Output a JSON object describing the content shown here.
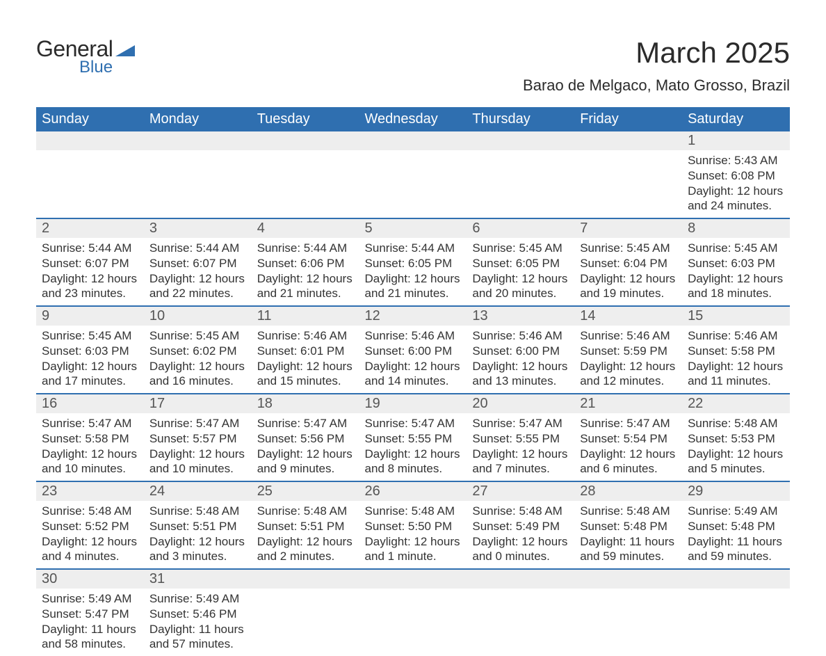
{
  "brand": {
    "word1": "General",
    "word2": "Blue",
    "color_blue": "#2f6fb0"
  },
  "title": "March 2025",
  "subtitle": "Barao de Melgaco, Mato Grosso, Brazil",
  "colors": {
    "header_bg": "#2f6fb0",
    "header_text": "#ffffff",
    "daynum_bg": "#eeeeee",
    "divider": "#2f6fb0",
    "text": "#333333",
    "page_bg": "#ffffff"
  },
  "day_headers": [
    "Sunday",
    "Monday",
    "Tuesday",
    "Wednesday",
    "Thursday",
    "Friday",
    "Saturday"
  ],
  "weeks": [
    [
      null,
      null,
      null,
      null,
      null,
      null,
      {
        "n": "1",
        "sunrise": "Sunrise: 5:43 AM",
        "sunset": "Sunset: 6:08 PM",
        "day1": "Daylight: 12 hours",
        "day2": "and 24 minutes."
      }
    ],
    [
      {
        "n": "2",
        "sunrise": "Sunrise: 5:44 AM",
        "sunset": "Sunset: 6:07 PM",
        "day1": "Daylight: 12 hours",
        "day2": "and 23 minutes."
      },
      {
        "n": "3",
        "sunrise": "Sunrise: 5:44 AM",
        "sunset": "Sunset: 6:07 PM",
        "day1": "Daylight: 12 hours",
        "day2": "and 22 minutes."
      },
      {
        "n": "4",
        "sunrise": "Sunrise: 5:44 AM",
        "sunset": "Sunset: 6:06 PM",
        "day1": "Daylight: 12 hours",
        "day2": "and 21 minutes."
      },
      {
        "n": "5",
        "sunrise": "Sunrise: 5:44 AM",
        "sunset": "Sunset: 6:05 PM",
        "day1": "Daylight: 12 hours",
        "day2": "and 21 minutes."
      },
      {
        "n": "6",
        "sunrise": "Sunrise: 5:45 AM",
        "sunset": "Sunset: 6:05 PM",
        "day1": "Daylight: 12 hours",
        "day2": "and 20 minutes."
      },
      {
        "n": "7",
        "sunrise": "Sunrise: 5:45 AM",
        "sunset": "Sunset: 6:04 PM",
        "day1": "Daylight: 12 hours",
        "day2": "and 19 minutes."
      },
      {
        "n": "8",
        "sunrise": "Sunrise: 5:45 AM",
        "sunset": "Sunset: 6:03 PM",
        "day1": "Daylight: 12 hours",
        "day2": "and 18 minutes."
      }
    ],
    [
      {
        "n": "9",
        "sunrise": "Sunrise: 5:45 AM",
        "sunset": "Sunset: 6:03 PM",
        "day1": "Daylight: 12 hours",
        "day2": "and 17 minutes."
      },
      {
        "n": "10",
        "sunrise": "Sunrise: 5:45 AM",
        "sunset": "Sunset: 6:02 PM",
        "day1": "Daylight: 12 hours",
        "day2": "and 16 minutes."
      },
      {
        "n": "11",
        "sunrise": "Sunrise: 5:46 AM",
        "sunset": "Sunset: 6:01 PM",
        "day1": "Daylight: 12 hours",
        "day2": "and 15 minutes."
      },
      {
        "n": "12",
        "sunrise": "Sunrise: 5:46 AM",
        "sunset": "Sunset: 6:00 PM",
        "day1": "Daylight: 12 hours",
        "day2": "and 14 minutes."
      },
      {
        "n": "13",
        "sunrise": "Sunrise: 5:46 AM",
        "sunset": "Sunset: 6:00 PM",
        "day1": "Daylight: 12 hours",
        "day2": "and 13 minutes."
      },
      {
        "n": "14",
        "sunrise": "Sunrise: 5:46 AM",
        "sunset": "Sunset: 5:59 PM",
        "day1": "Daylight: 12 hours",
        "day2": "and 12 minutes."
      },
      {
        "n": "15",
        "sunrise": "Sunrise: 5:46 AM",
        "sunset": "Sunset: 5:58 PM",
        "day1": "Daylight: 12 hours",
        "day2": "and 11 minutes."
      }
    ],
    [
      {
        "n": "16",
        "sunrise": "Sunrise: 5:47 AM",
        "sunset": "Sunset: 5:58 PM",
        "day1": "Daylight: 12 hours",
        "day2": "and 10 minutes."
      },
      {
        "n": "17",
        "sunrise": "Sunrise: 5:47 AM",
        "sunset": "Sunset: 5:57 PM",
        "day1": "Daylight: 12 hours",
        "day2": "and 10 minutes."
      },
      {
        "n": "18",
        "sunrise": "Sunrise: 5:47 AM",
        "sunset": "Sunset: 5:56 PM",
        "day1": "Daylight: 12 hours",
        "day2": "and 9 minutes."
      },
      {
        "n": "19",
        "sunrise": "Sunrise: 5:47 AM",
        "sunset": "Sunset: 5:55 PM",
        "day1": "Daylight: 12 hours",
        "day2": "and 8 minutes."
      },
      {
        "n": "20",
        "sunrise": "Sunrise: 5:47 AM",
        "sunset": "Sunset: 5:55 PM",
        "day1": "Daylight: 12 hours",
        "day2": "and 7 minutes."
      },
      {
        "n": "21",
        "sunrise": "Sunrise: 5:47 AM",
        "sunset": "Sunset: 5:54 PM",
        "day1": "Daylight: 12 hours",
        "day2": "and 6 minutes."
      },
      {
        "n": "22",
        "sunrise": "Sunrise: 5:48 AM",
        "sunset": "Sunset: 5:53 PM",
        "day1": "Daylight: 12 hours",
        "day2": "and 5 minutes."
      }
    ],
    [
      {
        "n": "23",
        "sunrise": "Sunrise: 5:48 AM",
        "sunset": "Sunset: 5:52 PM",
        "day1": "Daylight: 12 hours",
        "day2": "and 4 minutes."
      },
      {
        "n": "24",
        "sunrise": "Sunrise: 5:48 AM",
        "sunset": "Sunset: 5:51 PM",
        "day1": "Daylight: 12 hours",
        "day2": "and 3 minutes."
      },
      {
        "n": "25",
        "sunrise": "Sunrise: 5:48 AM",
        "sunset": "Sunset: 5:51 PM",
        "day1": "Daylight: 12 hours",
        "day2": "and 2 minutes."
      },
      {
        "n": "26",
        "sunrise": "Sunrise: 5:48 AM",
        "sunset": "Sunset: 5:50 PM",
        "day1": "Daylight: 12 hours",
        "day2": "and 1 minute."
      },
      {
        "n": "27",
        "sunrise": "Sunrise: 5:48 AM",
        "sunset": "Sunset: 5:49 PM",
        "day1": "Daylight: 12 hours",
        "day2": "and 0 minutes."
      },
      {
        "n": "28",
        "sunrise": "Sunrise: 5:48 AM",
        "sunset": "Sunset: 5:48 PM",
        "day1": "Daylight: 11 hours",
        "day2": "and 59 minutes."
      },
      {
        "n": "29",
        "sunrise": "Sunrise: 5:49 AM",
        "sunset": "Sunset: 5:48 PM",
        "day1": "Daylight: 11 hours",
        "day2": "and 59 minutes."
      }
    ],
    [
      {
        "n": "30",
        "sunrise": "Sunrise: 5:49 AM",
        "sunset": "Sunset: 5:47 PM",
        "day1": "Daylight: 11 hours",
        "day2": "and 58 minutes."
      },
      {
        "n": "31",
        "sunrise": "Sunrise: 5:49 AM",
        "sunset": "Sunset: 5:46 PM",
        "day1": "Daylight: 11 hours",
        "day2": "and 57 minutes."
      },
      null,
      null,
      null,
      null,
      null
    ]
  ]
}
